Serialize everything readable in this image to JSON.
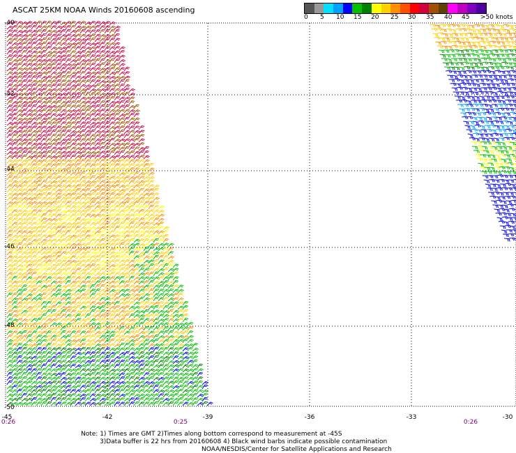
{
  "title": "ASCAT 25KM NOAA Winds 20160608 ascending",
  "legend": {
    "colors": [
      "#555555",
      "#999999",
      "#00e0ff",
      "#00a0ff",
      "#0000ff",
      "#00c000",
      "#008000",
      "#ffff00",
      "#ffd000",
      "#ff9000",
      "#ff5000",
      "#ff0000",
      "#d00040",
      "#a05000",
      "#604000",
      "#ff00ff",
      "#c000c0",
      "#8000c0",
      "#5000a0"
    ],
    "ticks": [
      "0",
      "5",
      "10",
      "15",
      "20",
      "25",
      "30",
      "35",
      "40",
      "45",
      ">50 knots"
    ]
  },
  "axes": {
    "lat_labels": [
      "-40",
      "-42",
      "-44",
      "-46",
      "-48",
      "-50"
    ],
    "lon_labels": [
      "-45",
      "-42",
      "-39",
      "-36",
      "-33",
      "-30"
    ],
    "times": [
      "0:26",
      "0:25",
      "0:26"
    ]
  },
  "notes": {
    "line1": "Note: 1) Times are GMT 2)Times along bottom correspond to measurement at -45S",
    "line2": "3)Data buffer is 22 hrs from 20160608 4) Black wind barbs indicate possible contamination",
    "line3": "NOAA/NESDIS/Center for Satellite Applications and Research"
  }
}
